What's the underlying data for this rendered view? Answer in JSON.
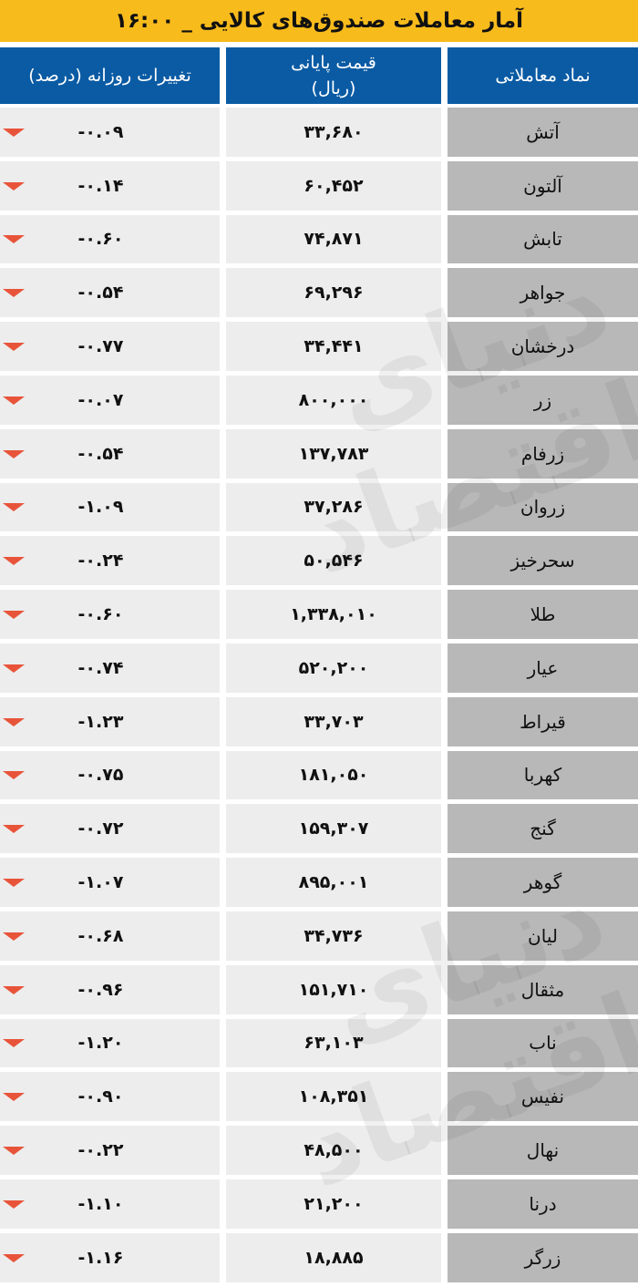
{
  "title": "آمار معاملات صندوق‌های کالایی _ ۱۶:۰۰",
  "headers": {
    "symbol": "نماد معاملاتی",
    "price_line1": "قیمت پایانی",
    "price_line2": "(ریال)",
    "change": "تغییرات روزانه (درصد)"
  },
  "colors": {
    "title_bg": "#f8bb1c",
    "header_bg": "#0a5ba4",
    "down_arrow": "#e8543a"
  },
  "watermark": "دنیای اقتصاد",
  "rows": [
    {
      "symbol": "آتش",
      "price": "۳۳,۶۸۰",
      "change": "-۰.۰۹",
      "trend": "down"
    },
    {
      "symbol": "آلتون",
      "price": "۶۰,۴۵۲",
      "change": "-۰.۱۴",
      "trend": "down"
    },
    {
      "symbol": "تابش",
      "price": "۷۴,۸۷۱",
      "change": "-۰.۶۰",
      "trend": "down"
    },
    {
      "symbol": "جواهر",
      "price": "۶۹,۲۹۶",
      "change": "-۰.۵۴",
      "trend": "down"
    },
    {
      "symbol": "درخشان",
      "price": "۳۴,۴۴۱",
      "change": "-۰.۷۷",
      "trend": "down"
    },
    {
      "symbol": "زر",
      "price": "۸۰۰,۰۰۰",
      "change": "-۰.۰۷",
      "trend": "down"
    },
    {
      "symbol": "زرفام",
      "price": "۱۳۷,۷۸۳",
      "change": "-۰.۵۴",
      "trend": "down"
    },
    {
      "symbol": "زروان",
      "price": "۳۷,۲۸۶",
      "change": "-۱.۰۹",
      "trend": "down"
    },
    {
      "symbol": "سحرخیز",
      "price": "۵۰,۵۴۶",
      "change": "-۰.۲۴",
      "trend": "down"
    },
    {
      "symbol": "طلا",
      "price": "۱,۳۳۸,۰۱۰",
      "change": "-۰.۶۰",
      "trend": "down"
    },
    {
      "symbol": "عیار",
      "price": "۵۲۰,۲۰۰",
      "change": "-۰.۷۴",
      "trend": "down"
    },
    {
      "symbol": "قیراط",
      "price": "۳۳,۷۰۳",
      "change": "-۱.۲۳",
      "trend": "down"
    },
    {
      "symbol": "کهربا",
      "price": "۱۸۱,۰۵۰",
      "change": "-۰.۷۵",
      "trend": "down"
    },
    {
      "symbol": "گنج",
      "price": "۱۵۹,۳۰۷",
      "change": "-۰.۷۲",
      "trend": "down"
    },
    {
      "symbol": "گوهر",
      "price": "۸۹۵,۰۰۱",
      "change": "-۱.۰۷",
      "trend": "down"
    },
    {
      "symbol": "لیان",
      "price": "۳۴,۷۳۶",
      "change": "-۰.۶۸",
      "trend": "down"
    },
    {
      "symbol": "مثقال",
      "price": "۱۵۱,۷۱۰",
      "change": "-۰.۹۶",
      "trend": "down"
    },
    {
      "symbol": "ناب",
      "price": "۶۳,۱۰۳",
      "change": "-۱.۲۰",
      "trend": "down"
    },
    {
      "symbol": "نفیس",
      "price": "۱۰۸,۳۵۱",
      "change": "-۰.۹۰",
      "trend": "down"
    },
    {
      "symbol": "نهال",
      "price": "۴۸,۵۰۰",
      "change": "-۰.۲۲",
      "trend": "down"
    },
    {
      "symbol": "درنا",
      "price": "۲۱,۲۰۰",
      "change": "-۱.۱۰",
      "trend": "down"
    },
    {
      "symbol": "زرگر",
      "price": "۱۸,۸۸۵",
      "change": "-۱.۱۶",
      "trend": "down"
    }
  ]
}
